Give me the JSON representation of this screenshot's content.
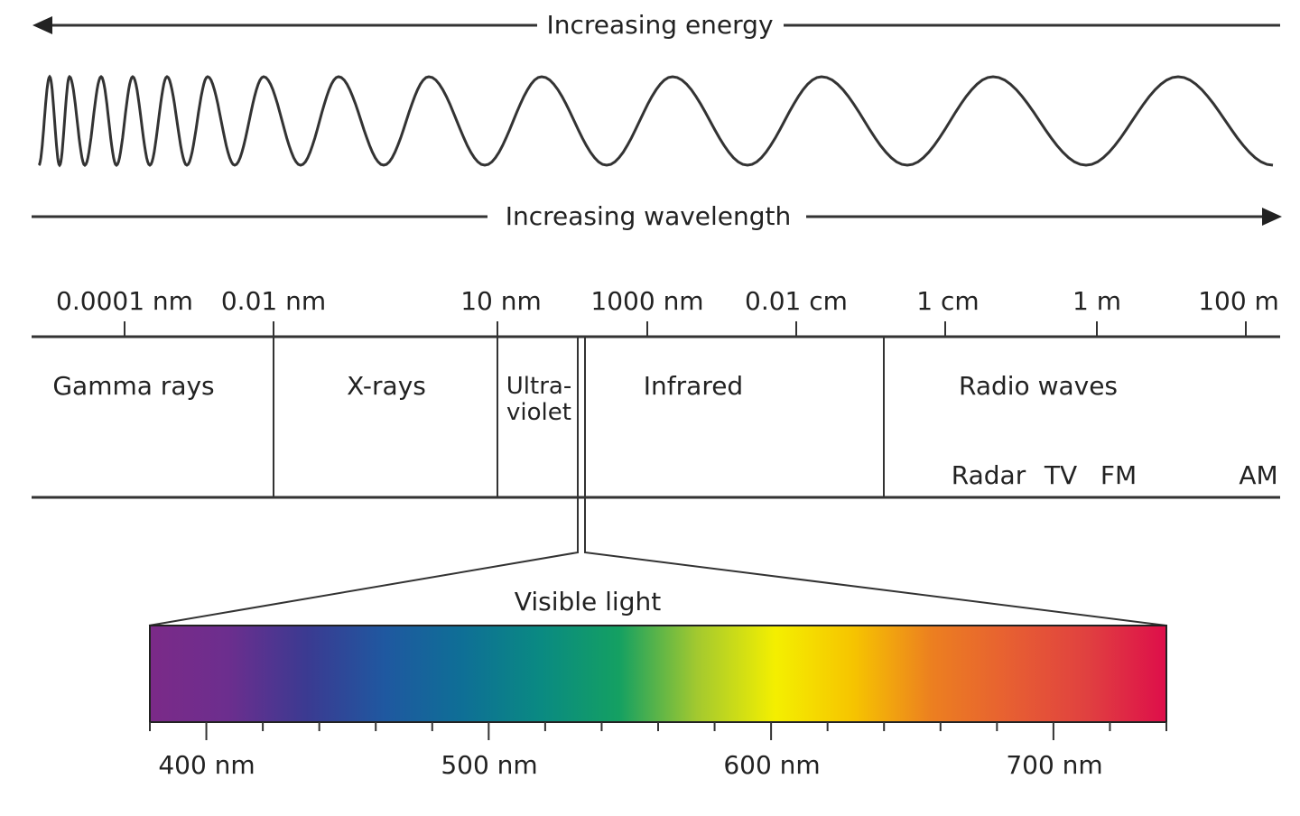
{
  "arrows": {
    "energy": {
      "label": "Increasing energy",
      "direction": "left"
    },
    "wavelength": {
      "label": "Increasing wavelength",
      "direction": "right"
    }
  },
  "wavelength_scale": [
    "0.0001 nm",
    "0.01 nm",
    "10 nm",
    "1000 nm",
    "0.01 cm",
    "1 cm",
    "1 m",
    "100 m"
  ],
  "regions": {
    "gamma": "Gamma rays",
    "xray": "X-rays",
    "uv_line1": "Ultra-",
    "uv_line2": "violet",
    "infrared": "Infrared",
    "radio": "Radio waves"
  },
  "radio_bands": [
    "Radar",
    "TV",
    "FM",
    "AM"
  ],
  "visible": {
    "label": "Visible light",
    "range_nm": [
      380,
      740
    ],
    "tick_labels": [
      "400 nm",
      "500 nm",
      "600 nm",
      "700 nm"
    ],
    "minor_tick_step_nm": 20,
    "colors": [
      "#7b2a88",
      "#6c2e8e",
      "#3b3a91",
      "#1f58a0",
      "#0e6f96",
      "#0a8a82",
      "#14a062",
      "#a3c92f",
      "#f4ef00",
      "#f6c400",
      "#ec7f20",
      "#e75f32",
      "#e04040",
      "#de0e4a"
    ]
  }
}
